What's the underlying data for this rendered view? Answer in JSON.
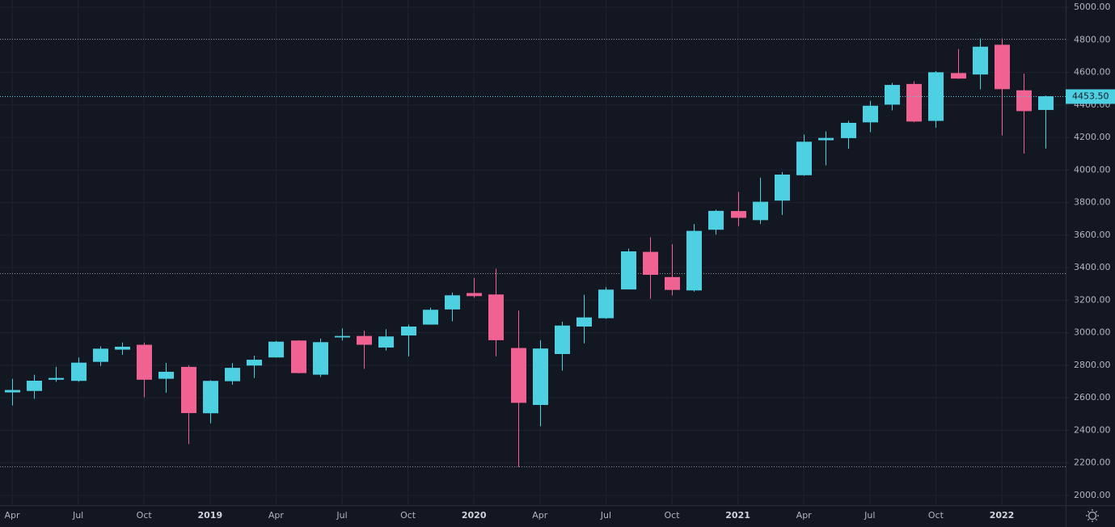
{
  "chart_data": {
    "type": "candlestick",
    "categories": [
      "Apr",
      null,
      null,
      "Jul",
      null,
      null,
      "Oct",
      null,
      null,
      "2019",
      null,
      null,
      "Apr",
      null,
      null,
      "Jul",
      null,
      null,
      "Oct",
      null,
      null,
      "2020",
      null,
      null,
      "Apr",
      null,
      null,
      "Jul",
      null,
      null,
      "Oct",
      null,
      null,
      "2021",
      null,
      null,
      "Apr",
      null,
      null,
      "Jul",
      null,
      null,
      "Oct",
      null,
      null,
      "2022",
      null,
      null
    ],
    "up_color": "#4dd0e1",
    "down_color": "#f06292",
    "open": [
      2633,
      2642,
      2711,
      2704,
      2821,
      2896,
      2926,
      2717,
      2790,
      2505,
      2702,
      2798,
      2848,
      2952,
      2742,
      2971,
      2980,
      2909,
      2983,
      3050,
      3143,
      3244,
      3235,
      2906,
      2556,
      2869,
      3038,
      3089,
      3266,
      3497,
      3342,
      3260,
      3633,
      3748,
      3692,
      3812,
      3968,
      4183,
      4196,
      4293,
      4402,
      4529,
      4302,
      4596,
      4587,
      4770,
      4490,
      4369
    ],
    "high": [
      2717,
      2742,
      2791,
      2848,
      2916,
      2940,
      2939,
      2815,
      2800,
      2708,
      2813,
      2860,
      2949,
      2954,
      2964,
      3027,
      3013,
      3022,
      3050,
      3154,
      3247,
      3337,
      3393,
      3136,
      2954,
      3068,
      3233,
      3280,
      3517,
      3587,
      3544,
      3668,
      3756,
      3866,
      3953,
      3988,
      4217,
      4238,
      4303,
      4425,
      4535,
      4546,
      4608,
      4744,
      4809,
      4809,
      4592,
      4458
    ],
    "low": [
      2553,
      2594,
      2698,
      2698,
      2796,
      2864,
      2603,
      2631,
      2316,
      2443,
      2681,
      2722,
      2848,
      2750,
      2728,
      2952,
      2778,
      2891,
      2855,
      3050,
      3070,
      3214,
      2855,
      2174,
      2425,
      2767,
      2934,
      3085,
      3266,
      3209,
      3229,
      3252,
      3603,
      3655,
      3668,
      3724,
      3964,
      4029,
      4130,
      4233,
      4367,
      4293,
      4260,
      4560,
      4496,
      4213,
      4101,
      4132
    ],
    "close": [
      2648,
      2705,
      2722,
      2816,
      2902,
      2914,
      2711,
      2760,
      2506,
      2704,
      2784,
      2834,
      2945,
      2752,
      2942,
      2980,
      2926,
      2977,
      3038,
      3141,
      3230,
      3225,
      2954,
      2569,
      2903,
      3044,
      3094,
      3265,
      3500,
      3356,
      3263,
      3626,
      3749,
      3706,
      3805,
      3972,
      4174,
      4197,
      4290,
      4395,
      4523,
      4298,
      4601,
      4562,
      4758,
      4497,
      4362,
      4453.5
    ],
    "ylim": [
      1940,
      5045
    ],
    "yticks": [
      {
        "value": 2000,
        "label": "2000.00"
      },
      {
        "value": 2200,
        "label": "2200.00"
      },
      {
        "value": 2400,
        "label": "2400.00"
      },
      {
        "value": 2600,
        "label": "2600.00"
      },
      {
        "value": 2800,
        "label": "2800.00"
      },
      {
        "value": 3000,
        "label": "3000.00"
      },
      {
        "value": 3200,
        "label": "3200.00"
      },
      {
        "value": 3400,
        "label": "3400.00"
      },
      {
        "value": 3600,
        "label": "3600.00"
      },
      {
        "value": 3800,
        "label": "3800.00"
      },
      {
        "value": 4000,
        "label": "4000.00"
      },
      {
        "value": 4200,
        "label": "4200.00"
      },
      {
        "value": 4400,
        "label": "4400.00"
      },
      {
        "value": 4600,
        "label": "4600.00"
      },
      {
        "value": 4800,
        "label": "4800.00"
      },
      {
        "value": 5000,
        "label": "5000.00"
      }
    ],
    "price_lines": [
      4806,
      3366,
      2179
    ],
    "last_price": {
      "value": 4453.5,
      "label": "4453.50"
    },
    "grid": true
  }
}
